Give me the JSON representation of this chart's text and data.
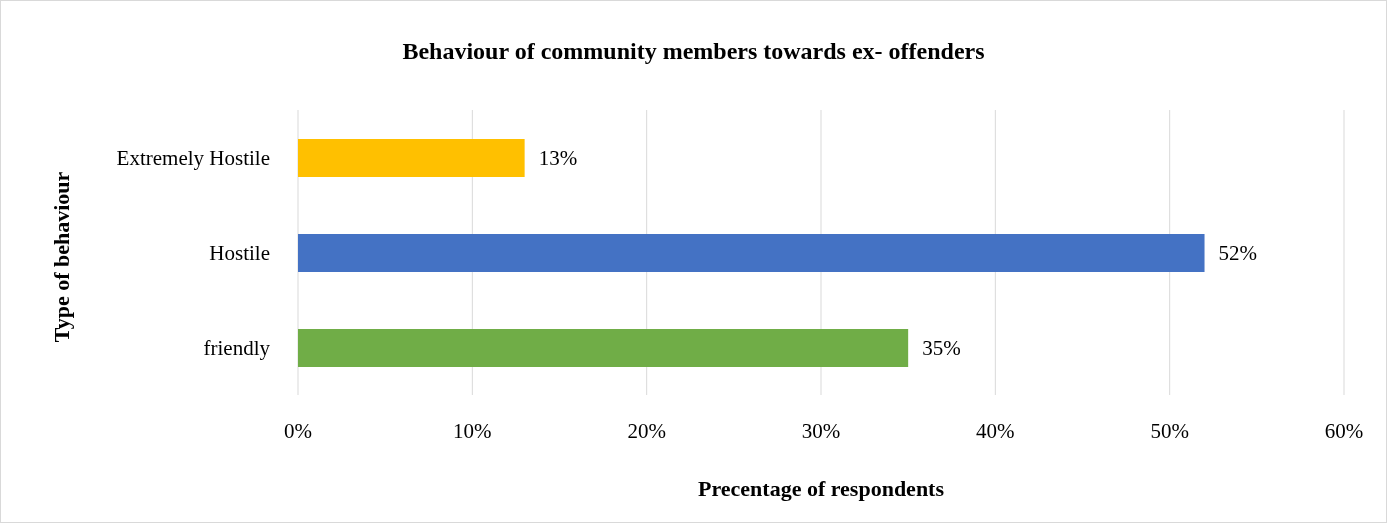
{
  "chart_data": {
    "type": "bar",
    "orientation": "horizontal",
    "title": "Behaviour of community members towards ex- offenders",
    "xlabel": "Precentage of respondents",
    "ylabel": "Type of behaviour",
    "categories": [
      "Extremely Hostile",
      "Hostile",
      "friendly"
    ],
    "values": [
      13,
      52,
      35
    ],
    "colors": [
      "#ffc000",
      "#4472c4",
      "#70ad47"
    ],
    "value_labels": [
      "13%",
      "52%",
      "35%"
    ],
    "xlim": [
      0,
      60
    ],
    "xticks": [
      {
        "value": 0,
        "label": "0%"
      },
      {
        "value": 10,
        "label": "10%"
      },
      {
        "value": 20,
        "label": "20%"
      },
      {
        "value": 30,
        "label": "30%"
      },
      {
        "value": 40,
        "label": "40%"
      },
      {
        "value": 50,
        "label": "50%"
      },
      {
        "value": 60,
        "label": "60%"
      }
    ],
    "grid": "x"
  }
}
